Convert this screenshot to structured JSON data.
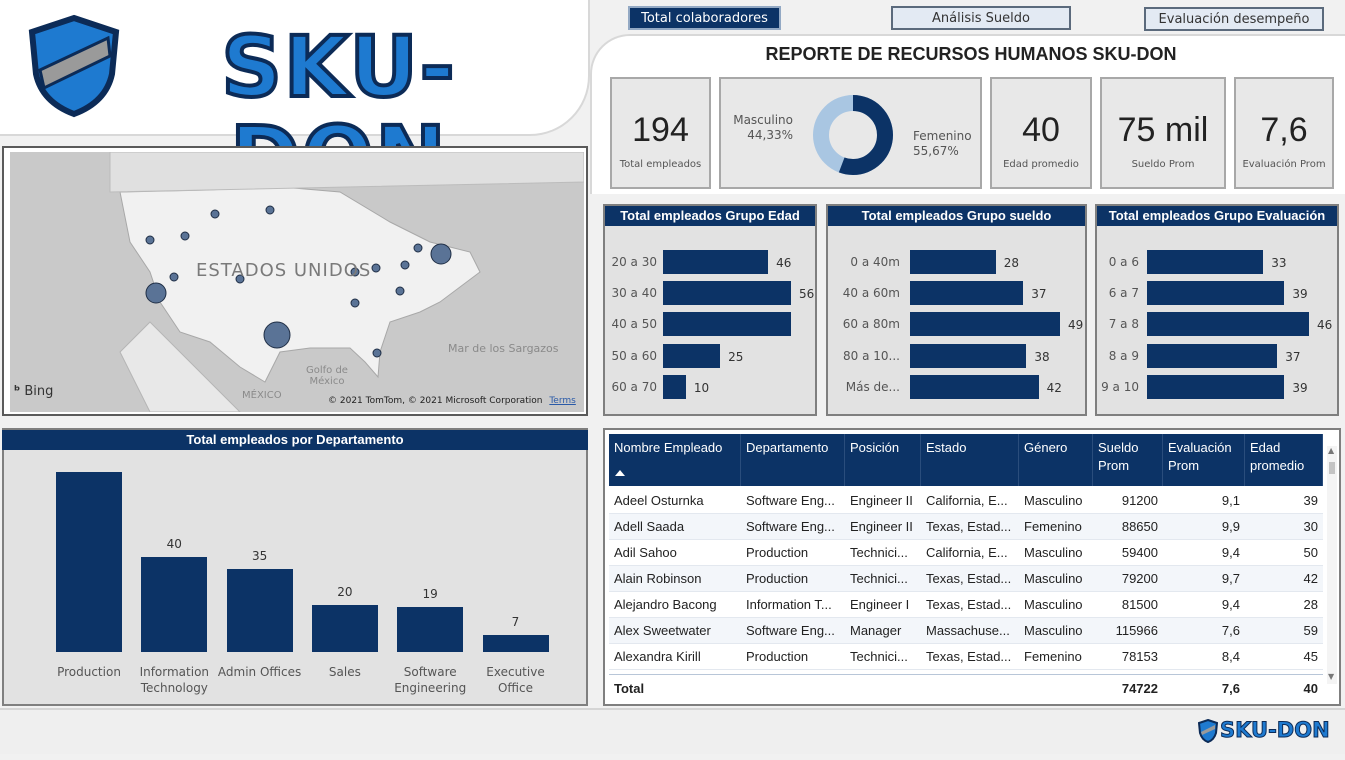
{
  "brand": {
    "logo_text": "SKU-DON",
    "footer_logo_text": "SKU-DON"
  },
  "nav": {
    "total": "Total colaboradores",
    "sueldo": "Análisis Sueldo",
    "evaluacion": "Evaluación desempeño"
  },
  "header": {
    "title": "REPORTE DE RECURSOS HUMANOS SKU-DON"
  },
  "kpis": {
    "total_empleados": {
      "value": "194",
      "label": "Total empleados"
    },
    "edad": {
      "value": "40",
      "label": "Edad promedio"
    },
    "sueldo": {
      "value": "75 mil",
      "label": "Sueldo Prom"
    },
    "evaluacion": {
      "value": "7,6",
      "label": "Evaluación Prom"
    }
  },
  "gender": {
    "masc_label": "Masculino",
    "masc_pct": "44,33%",
    "masc_value": 44.33,
    "fem_label": "Femenino",
    "fem_pct": "55,67%",
    "fem_value": 55.67,
    "colors": {
      "masc": "#a9c6e2",
      "fem": "#0c3366"
    }
  },
  "map": {
    "country_label": "ESTADOS UNIDOS",
    "sea_label": "Mar de los Sargazos",
    "gulf_label_1": "Golfo de",
    "gulf_label_2": "México",
    "mexico_label": "MÉXICO",
    "bing_label": "Bing",
    "copyright": "© 2021 TomTom, © 2021 Microsoft Corporation",
    "terms": "Terms"
  },
  "chart_data": [
    {
      "type": "bar",
      "title": "Total empleados Grupo Edad",
      "orientation": "horizontal",
      "categories": [
        "20 a 30",
        "30 a 40",
        "40 a 50",
        "50 a 60",
        "60 a 70"
      ],
      "values": [
        46,
        56,
        null,
        25,
        10
      ]
    },
    {
      "type": "bar",
      "title": "Total empleados Grupo sueldo",
      "orientation": "horizontal",
      "categories": [
        "0 a 40m",
        "40 a 60m",
        "60 a 80m",
        "80 a 10...",
        "Más de..."
      ],
      "values": [
        28,
        37,
        49,
        38,
        42
      ]
    },
    {
      "type": "bar",
      "title": "Total empleados Grupo Evaluación",
      "orientation": "horizontal",
      "categories": [
        "0 a 6",
        "6 a 7",
        "7 a 8",
        "8 a 9",
        "9 a 10"
      ],
      "values": [
        33,
        39,
        46,
        37,
        39
      ]
    },
    {
      "type": "bar",
      "title": "Total empleados por Departamento",
      "categories": [
        "Production",
        "Information Technology",
        "Admin Offices",
        "Sales",
        "Software Engineering",
        "Executive Office"
      ],
      "category_lines": [
        [
          "Production"
        ],
        [
          "Information",
          "Technology"
        ],
        [
          "Admin Offices"
        ],
        [
          "Sales"
        ],
        [
          "Software",
          "Engineering"
        ],
        [
          "Executive",
          "Office"
        ]
      ],
      "values": [
        null,
        40,
        35,
        20,
        19,
        7
      ],
      "labels": [
        "",
        "40",
        "35",
        "20",
        "19",
        "7"
      ]
    }
  ],
  "table": {
    "headers": [
      "Nombre Empleado",
      "Departamento",
      "Posición",
      "Estado",
      "Género",
      "Sueldo Prom",
      "Evaluación Prom",
      "Edad promedio"
    ],
    "rows": [
      [
        "Adeel Osturnka",
        "Software Eng...",
        "Engineer II",
        "California, E...",
        "Masculino",
        "91200",
        "9,1",
        "39"
      ],
      [
        "Adell Saada",
        "Software Eng...",
        "Engineer II",
        "Texas, Estad...",
        "Femenino",
        "88650",
        "9,9",
        "30"
      ],
      [
        "Adil Sahoo",
        "Production",
        "Technici...",
        "California, E...",
        "Masculino",
        "59400",
        "9,4",
        "50"
      ],
      [
        "Alain Robinson",
        "Production",
        "Technici...",
        "Texas, Estad...",
        "Masculino",
        "79200",
        "9,7",
        "42"
      ],
      [
        "Alejandro Bacong",
        "Information T...",
        "Engineer I",
        "Texas, Estad...",
        "Masculino",
        "81500",
        "9,4",
        "28"
      ],
      [
        "Alex Sweetwater",
        "Software Eng...",
        "Manager",
        "Massachuse...",
        "Masculino",
        "115966",
        "7,6",
        "59"
      ],
      [
        "Alexandra Kirill",
        "Production",
        "Technici...",
        "Texas, Estad...",
        "Femenino",
        "78153",
        "8,4",
        "45"
      ]
    ],
    "total": [
      "Total",
      "",
      "",
      "",
      "",
      "74722",
      "7,6",
      "40"
    ]
  }
}
